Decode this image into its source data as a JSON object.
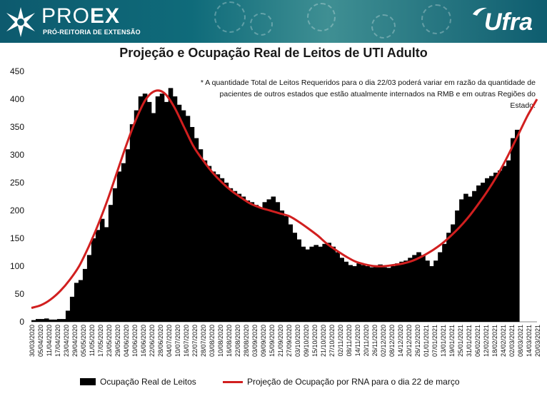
{
  "header": {
    "proex_light": "PRO",
    "proex_bold": "EX",
    "subtitle": "PRÓ-REITORIA DE EXTENSÃO",
    "ufra": "Ufra",
    "colors": {
      "banner": "#0f6b7a",
      "accent": "#d11f1f"
    },
    "logo_icon": "proex-star-icon",
    "ufra_icon": "ufra-flag-icon"
  },
  "note": {
    "line1": "* A quantidade Total de Leitos Requeridos para o dia 22/03 poderá variar em razão da quantidade de",
    "line2": "pacientes de outros estados que estão atualmente internados na  RMB e em outras Regiões do Estado."
  },
  "chart_data": {
    "type": "bar",
    "title": "Projeção e Ocupação Real de Leitos de UTI Adulto",
    "xlabel": "",
    "ylabel": "",
    "ylim": [
      0,
      450
    ],
    "yticks": [
      0,
      50,
      100,
      150,
      200,
      250,
      300,
      350,
      400,
      450
    ],
    "grid": false,
    "legend_position": "bottom",
    "tick_labels": [
      "30/03/2020",
      "05/04/2020",
      "11/04/2020",
      "17/04/2020",
      "23/04/2020",
      "29/04/2020",
      "05/05/2020",
      "11/05/2020",
      "17/05/2020",
      "23/05/2020",
      "29/05/2020",
      "04/06/2020",
      "10/06/2020",
      "16/06/2020",
      "22/06/2020",
      "28/06/2020",
      "04/07/2020",
      "10/07/2020",
      "16/07/2020",
      "22/07/2020",
      "28/07/2020",
      "03/08/2020",
      "10/08/2020",
      "16/08/2020",
      "22/08/2020",
      "28/08/2020",
      "03/09/2020",
      "09/09/2020",
      "15/09/2020",
      "21/09/2020",
      "27/09/2020",
      "03/10/2020",
      "09/10/2020",
      "15/10/2020",
      "21/10/2020",
      "27/10/2020",
      "02/11/2020",
      "08/11/2020",
      "14/11/2020",
      "20/11/2020",
      "26/11/2020",
      "02/12/2020",
      "08/12/2020",
      "14/12/2020",
      "20/12/2020",
      "26/12/2020",
      "01/01/2021",
      "07/01/2021",
      "13/01/2021",
      "19/01/2021",
      "25/01/2021",
      "31/01/2021",
      "06/02/2021",
      "12/02/2021",
      "18/02/2021",
      "24/02/2021",
      "02/03/2021",
      "08/03/2021",
      "14/03/2021",
      "20/03/2021"
    ],
    "series": [
      {
        "name": "Ocupação Real de Leitos",
        "kind": "bar",
        "color": "#000000",
        "values": [
          3,
          5,
          5,
          6,
          4,
          4,
          5,
          5,
          20,
          45,
          70,
          75,
          95,
          120,
          150,
          165,
          185,
          170,
          210,
          240,
          270,
          285,
          310,
          355,
          380,
          405,
          410,
          395,
          375,
          405,
          410,
          395,
          420,
          405,
          390,
          380,
          370,
          350,
          330,
          310,
          290,
          280,
          270,
          265,
          258,
          250,
          240,
          235,
          230,
          225,
          218,
          215,
          210,
          205,
          215,
          220,
          225,
          215,
          200,
          190,
          175,
          160,
          148,
          135,
          130,
          135,
          138,
          135,
          140,
          142,
          135,
          125,
          115,
          108,
          102,
          100,
          105,
          102,
          100,
          98,
          100,
          103,
          98,
          97,
          100,
          105,
          108,
          110,
          115,
          120,
          125,
          120,
          110,
          100,
          110,
          125,
          140,
          160,
          175,
          200,
          220,
          230,
          225,
          235,
          245,
          250,
          258,
          262,
          268,
          272,
          280,
          290,
          330,
          345
        ]
      },
      {
        "name": "Projeção de Ocupação por RNA para o dia 22 de março",
        "kind": "line",
        "color": "#d11f1f",
        "values": [
          25,
          30,
          40,
          55,
          75,
          100,
          135,
          175,
          220,
          270,
          320,
          365,
          400,
          415,
          410,
          385,
          350,
          315,
          290,
          268,
          250,
          235,
          223,
          212,
          205,
          200,
          195,
          190,
          180,
          168,
          155,
          140,
          128,
          117,
          108,
          103,
          100,
          100,
          102,
          105,
          110,
          118,
          128,
          140,
          155,
          172,
          192,
          215,
          240,
          268,
          300,
          335,
          370,
          400
        ]
      }
    ]
  },
  "legend": {
    "bar_label": "Ocupação Real de Leitos",
    "line_label": "Projeção de Ocupação por RNA para o dia 22 de março"
  }
}
